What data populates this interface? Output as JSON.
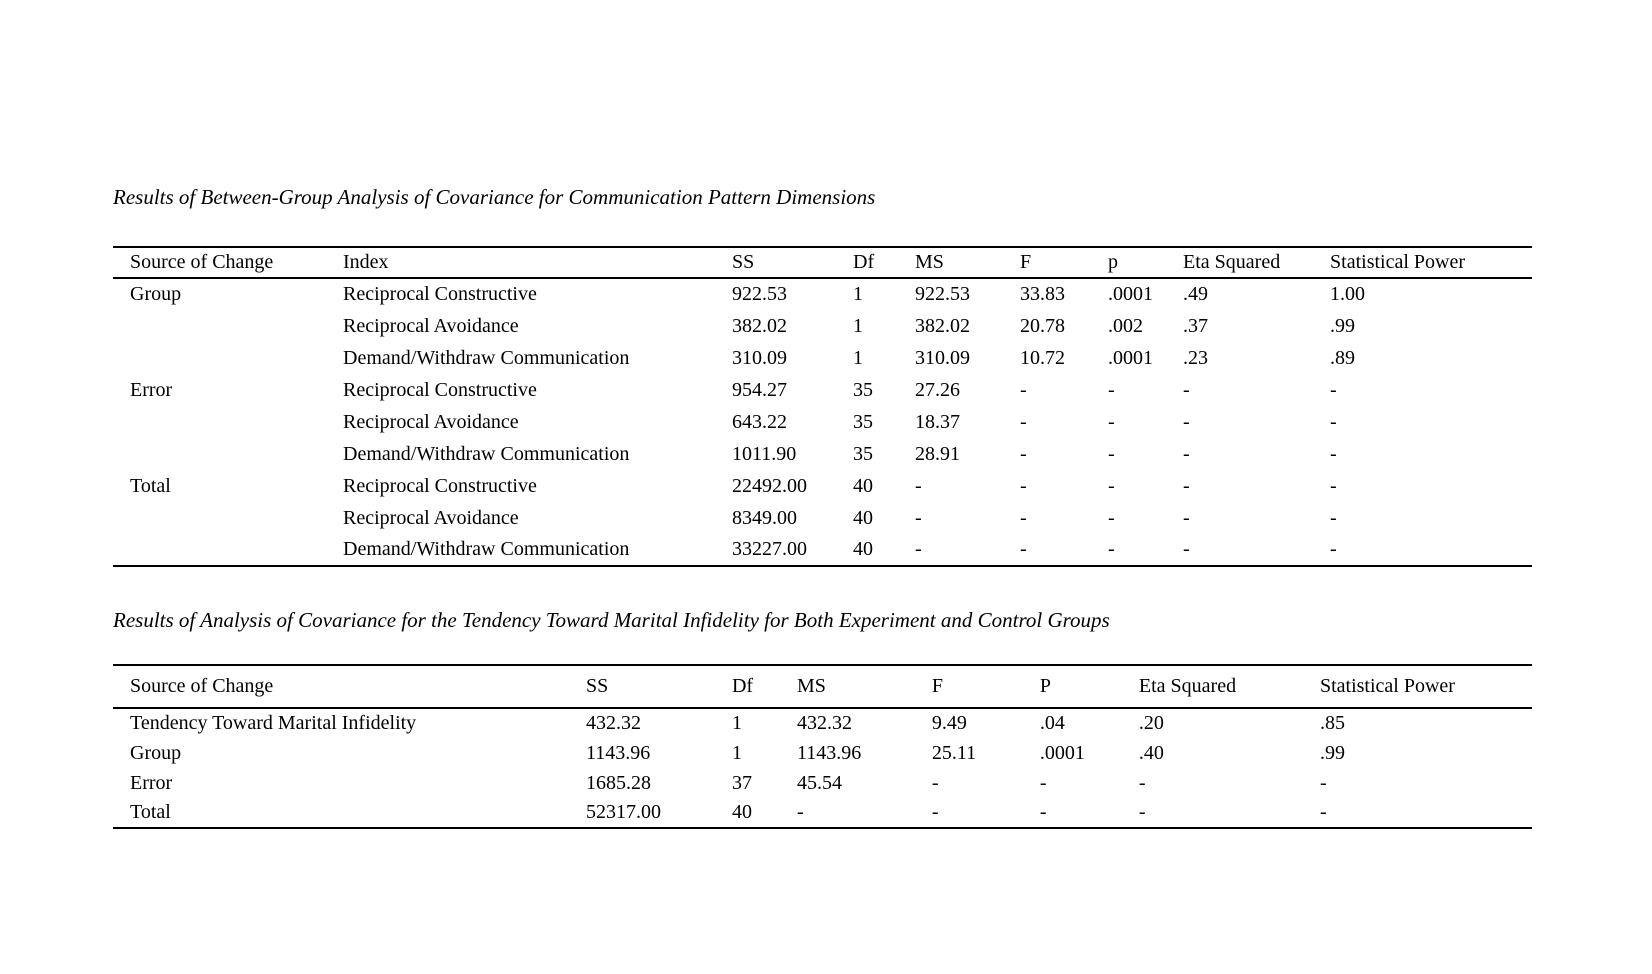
{
  "page": {
    "background_color": "#ffffff",
    "text_color": "#000000",
    "rule_color": "#000000"
  },
  "tables": [
    {
      "title": "Results of Between-Group Analysis of Covariance for Communication Pattern Dimensions",
      "columns": [
        "Source of Change",
        "Index",
        "SS",
        "Df",
        "MS",
        "F",
        "p",
        "Eta Squared",
        "Statistical Power"
      ],
      "rows": [
        [
          "Group",
          "Reciprocal Constructive",
          "922.53",
          "1",
          "922.53",
          "33.83",
          ".0001",
          ".49",
          "1.00"
        ],
        [
          "",
          "Reciprocal Avoidance",
          "382.02",
          "1",
          "382.02",
          "20.78",
          ".002",
          ".37",
          ".99"
        ],
        [
          "",
          "Demand/Withdraw Communication",
          "310.09",
          "1",
          "310.09",
          "10.72",
          ".0001",
          ".23",
          ".89"
        ],
        [
          "Error",
          "Reciprocal Constructive",
          "954.27",
          "35",
          "27.26",
          "-",
          "-",
          "-",
          "-"
        ],
        [
          "",
          "Reciprocal Avoidance",
          "643.22",
          "35",
          "18.37",
          "-",
          "-",
          "-",
          "-"
        ],
        [
          "",
          "Demand/Withdraw Communication",
          "1011.90",
          "35",
          "28.91",
          "-",
          "-",
          "-",
          "-"
        ],
        [
          "Total",
          "Reciprocal Constructive",
          "22492.00",
          "40",
          "-",
          "-",
          "-",
          "-",
          "-"
        ],
        [
          "",
          "Reciprocal Avoidance",
          "8349.00",
          "40",
          "-",
          "-",
          "-",
          "-",
          "-"
        ],
        [
          "",
          "Demand/Withdraw Communication",
          "33227.00",
          "40",
          "-",
          "-",
          "-",
          "-",
          "-"
        ]
      ]
    },
    {
      "title": "Results of Analysis of Covariance for the Tendency Toward Marital Infidelity for Both Experiment and Control Groups",
      "columns": [
        "Source of Change",
        "SS",
        "Df",
        "MS",
        "F",
        "P",
        "Eta Squared",
        "Statistical Power"
      ],
      "rows": [
        [
          "Tendency Toward Marital Infidelity",
          "432.32",
          "1",
          "432.32",
          "9.49",
          ".04",
          ".20",
          ".85"
        ],
        [
          "Group",
          "1143.96",
          "1",
          "1143.96",
          "25.11",
          ".0001",
          ".40",
          ".99"
        ],
        [
          "Error",
          "1685.28",
          "37",
          "45.54",
          "-",
          "-",
          "-",
          "-"
        ],
        [
          "Total",
          "52317.00",
          "40",
          "-",
          "-",
          "-",
          "-",
          "-"
        ]
      ]
    }
  ]
}
